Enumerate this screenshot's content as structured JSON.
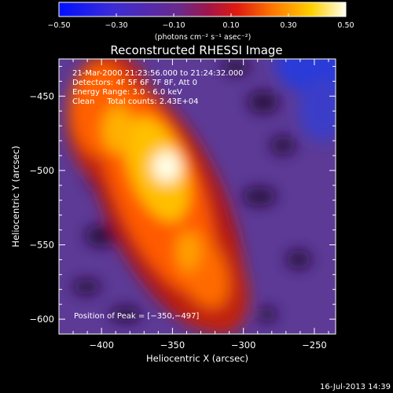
{
  "colorbar": {
    "ticks": [
      "−0.50",
      "−0.30",
      "−0.10",
      "0.10",
      "0.30",
      "0.50"
    ],
    "tick_values": [
      -0.5,
      -0.3,
      -0.1,
      0.1,
      0.3,
      0.5
    ],
    "range": [
      -0.5,
      0.5
    ],
    "units_label": "(photons cm⁻² s⁻¹ asec⁻²)"
  },
  "title": "Reconstructed RHESSI Image",
  "info": {
    "line1": "21-Mar-2000 21:23:56.000 to 21:24:32.000",
    "line2": "Detectors: 4F 5F 6F 7F 8F, Att 0",
    "line3": "Energy Range: 3.0 - 6.0 keV",
    "line4": "Clean     Total counts: 2.43E+04"
  },
  "peak_label": "Position of Peak = [−350,−497]",
  "x_axis": {
    "label": "Heliocentric X (arcsec)",
    "ticks": [
      "−400",
      "−350",
      "−300",
      "−250"
    ],
    "tick_values": [
      -400,
      -350,
      -300,
      -250
    ],
    "range": [
      -430,
      -235
    ]
  },
  "y_axis": {
    "label": "Heliocentric Y (arcsec)",
    "ticks": [
      "−450",
      "−500",
      "−550",
      "−600"
    ],
    "tick_values": [
      -450,
      -500,
      -550,
      -600
    ],
    "range": [
      -610,
      -425
    ]
  },
  "timestamp": "16-Jul-2013 14:39",
  "colors": {
    "background": "#000000",
    "axes": "#ffffff"
  }
}
